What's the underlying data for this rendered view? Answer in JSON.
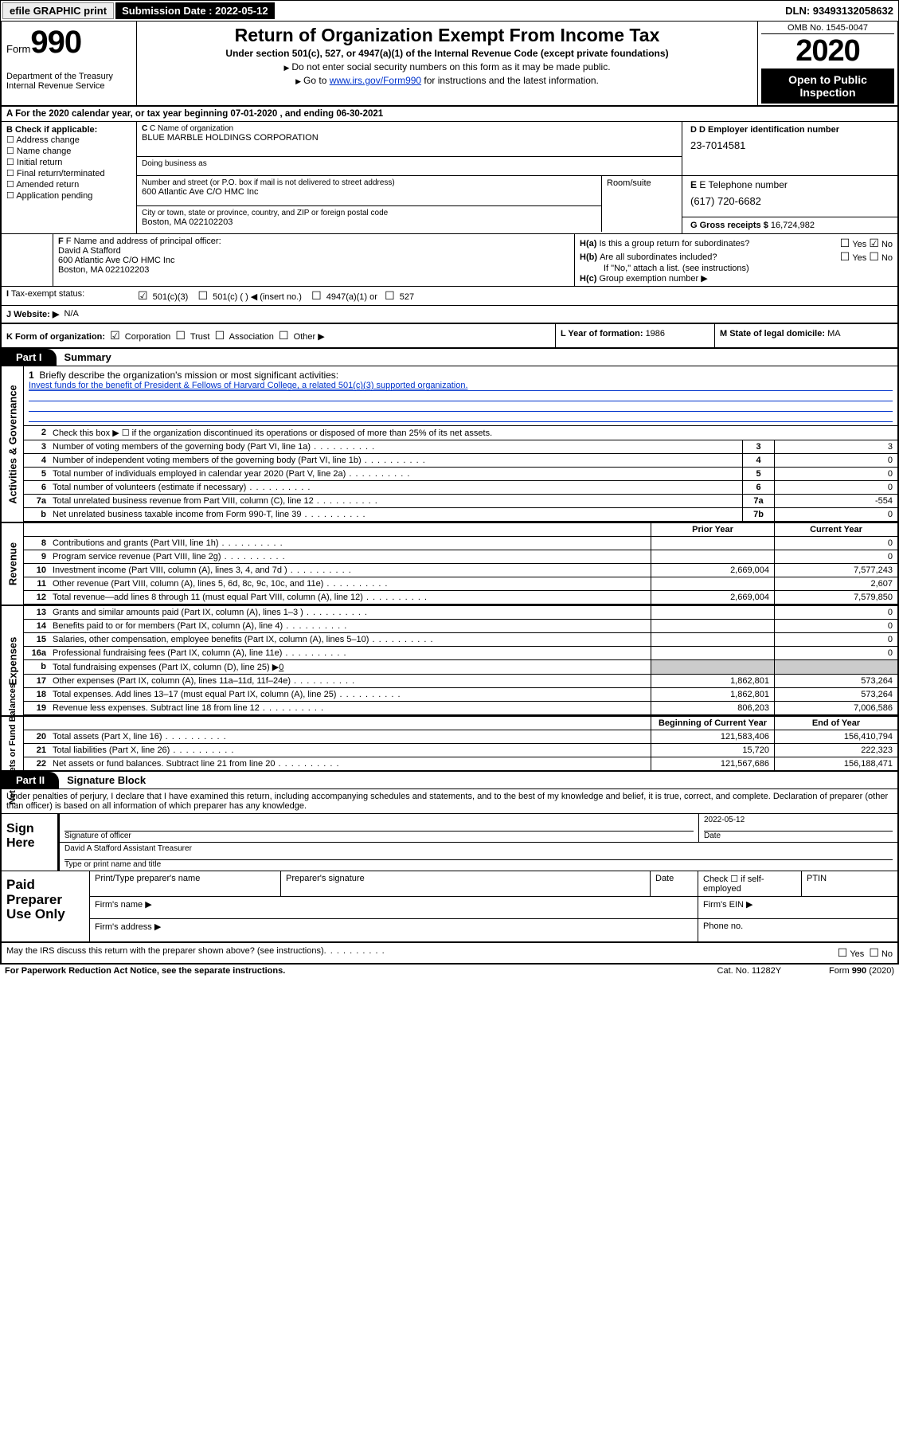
{
  "topbar": {
    "efile": "efile GRAPHIC print",
    "submission_label": "Submission Date : 2022-05-12",
    "dln": "DLN: 93493132058632"
  },
  "header": {
    "form_word": "Form",
    "form_num": "990",
    "dept": "Department of the Treasury\nInternal Revenue Service",
    "title": "Return of Organization Exempt From Income Tax",
    "subtitle": "Under section 501(c), 527, or 4947(a)(1) of the Internal Revenue Code (except private foundations)",
    "note1": "Do not enter social security numbers on this form as it may be made public.",
    "note2_pre": "Go to ",
    "note2_link": "www.irs.gov/Form990",
    "note2_post": " for instructions and the latest information.",
    "omb": "OMB No. 1545-0047",
    "year": "2020",
    "open_public": "Open to Public Inspection"
  },
  "row_a": "A For the 2020 calendar year, or tax year beginning 07-01-2020   , and ending 06-30-2021",
  "section_b": {
    "label": "B Check if applicable:",
    "items": [
      "Address change",
      "Name change",
      "Initial return",
      "Final return/terminated",
      "Amended return",
      "Application pending"
    ]
  },
  "section_c": {
    "name_lbl": "C Name of organization",
    "name_val": "BLUE MARBLE HOLDINGS CORPORATION",
    "dba_lbl": "Doing business as",
    "addr_lbl": "Number and street (or P.O. box if mail is not delivered to street address)",
    "addr_val": "600 Atlantic Ave C/O HMC Inc",
    "room_lbl": "Room/suite",
    "city_lbl": "City or town, state or province, country, and ZIP or foreign postal code",
    "city_val": "Boston, MA  022102203"
  },
  "section_d": {
    "ein_lbl": "D Employer identification number",
    "ein_val": "23-7014581",
    "tel_lbl": "E Telephone number",
    "tel_val": "(617) 720-6682",
    "gross_lbl": "G Gross receipts $ ",
    "gross_val": "16,724,982"
  },
  "section_f": {
    "lbl": "F Name and address of principal officer:",
    "name": "David A Stafford",
    "addr1": "600 Atlantic Ave C/O HMC Inc",
    "addr2": "Boston, MA  022102203"
  },
  "section_h": {
    "ha": "Is this a group return for subordinates?",
    "hb": "Are all subordinates included?",
    "hb_note": "If \"No,\" attach a list. (see instructions)",
    "hc": "Group exemption number ▶"
  },
  "tax_exempt": {
    "lbl": "Tax-exempt status:",
    "opt1": "501(c)(3)",
    "opt2": "501(c) (  ) ◀ (insert no.)",
    "opt3": "4947(a)(1) or",
    "opt4": "527"
  },
  "website": {
    "lbl": "J   Website: ▶",
    "val": "N/A"
  },
  "row_k": {
    "k_lbl": "K Form of organization:",
    "k_opts": [
      "Corporation",
      "Trust",
      "Association",
      "Other ▶"
    ],
    "l_lbl": "L Year of formation: ",
    "l_val": "1986",
    "m_lbl": "M State of legal domicile: ",
    "m_val": "MA"
  },
  "part1": {
    "tab": "Part I",
    "title": "Summary"
  },
  "mission": {
    "num": "1",
    "lbl": "Briefly describe the organization's mission or most significant activities:",
    "text": "Invest funds for the benefit of President & Fellows of Harvard College, a related 501(c)(3) supported organization."
  },
  "lines_ag": {
    "l2": "Check this box ▶ ☐  if the organization discontinued its operations or disposed of more than 25% of its net assets.",
    "rows": [
      {
        "n": "3",
        "d": "Number of voting members of the governing body (Part VI, line 1a)",
        "box": "3",
        "v": "3"
      },
      {
        "n": "4",
        "d": "Number of independent voting members of the governing body (Part VI, line 1b)",
        "box": "4",
        "v": "0"
      },
      {
        "n": "5",
        "d": "Total number of individuals employed in calendar year 2020 (Part V, line 2a)",
        "box": "5",
        "v": "0"
      },
      {
        "n": "6",
        "d": "Total number of volunteers (estimate if necessary)",
        "box": "6",
        "v": "0"
      },
      {
        "n": "7a",
        "d": "Total unrelated business revenue from Part VIII, column (C), line 12",
        "box": "7a",
        "v": "-554"
      },
      {
        "n": "b",
        "d": "Net unrelated business taxable income from Form 990-T, line 39",
        "box": "7b",
        "v": "0"
      }
    ]
  },
  "col_hdrs": {
    "prior": "Prior Year",
    "current": "Current Year",
    "begin": "Beginning of Current Year",
    "end": "End of Year"
  },
  "revenue": {
    "side": "Revenue",
    "rows": [
      {
        "n": "8",
        "d": "Contributions and grants (Part VIII, line 1h)",
        "p": "",
        "c": "0"
      },
      {
        "n": "9",
        "d": "Program service revenue (Part VIII, line 2g)",
        "p": "",
        "c": "0"
      },
      {
        "n": "10",
        "d": "Investment income (Part VIII, column (A), lines 3, 4, and 7d )",
        "p": "2,669,004",
        "c": "7,577,243"
      },
      {
        "n": "11",
        "d": "Other revenue (Part VIII, column (A), lines 5, 6d, 8c, 9c, 10c, and 11e)",
        "p": "",
        "c": "2,607"
      },
      {
        "n": "12",
        "d": "Total revenue—add lines 8 through 11 (must equal Part VIII, column (A), line 12)",
        "p": "2,669,004",
        "c": "7,579,850"
      }
    ]
  },
  "expenses": {
    "side": "Expenses",
    "rows": [
      {
        "n": "13",
        "d": "Grants and similar amounts paid (Part IX, column (A), lines 1–3 )",
        "p": "",
        "c": "0"
      },
      {
        "n": "14",
        "d": "Benefits paid to or for members (Part IX, column (A), line 4)",
        "p": "",
        "c": "0"
      },
      {
        "n": "15",
        "d": "Salaries, other compensation, employee benefits (Part IX, column (A), lines 5–10)",
        "p": "",
        "c": "0"
      },
      {
        "n": "16a",
        "d": "Professional fundraising fees (Part IX, column (A), line 11e)",
        "p": "",
        "c": "0"
      }
    ],
    "line_b": {
      "n": "b",
      "d": "Total fundraising expenses (Part IX, column (D), line 25) ▶",
      "v": "0"
    },
    "rows2": [
      {
        "n": "17",
        "d": "Other expenses (Part IX, column (A), lines 11a–11d, 11f–24e)",
        "p": "1,862,801",
        "c": "573,264"
      },
      {
        "n": "18",
        "d": "Total expenses. Add lines 13–17 (must equal Part IX, column (A), line 25)",
        "p": "1,862,801",
        "c": "573,264"
      },
      {
        "n": "19",
        "d": "Revenue less expenses. Subtract line 18 from line 12",
        "p": "806,203",
        "c": "7,006,586"
      }
    ]
  },
  "netassets": {
    "side": "Net Assets or Fund Balances",
    "rows": [
      {
        "n": "20",
        "d": "Total assets (Part X, line 16)",
        "p": "121,583,406",
        "c": "156,410,794"
      },
      {
        "n": "21",
        "d": "Total liabilities (Part X, line 26)",
        "p": "15,720",
        "c": "222,323"
      },
      {
        "n": "22",
        "d": "Net assets or fund balances. Subtract line 21 from line 20",
        "p": "121,567,686",
        "c": "156,188,471"
      }
    ]
  },
  "part2": {
    "tab": "Part II",
    "title": "Signature Block"
  },
  "perjury": "Under penalties of perjury, I declare that I have examined this return, including accompanying schedules and statements, and to the best of my knowledge and belief, it is true, correct, and complete. Declaration of preparer (other than officer) is based on all information of which preparer has any knowledge.",
  "sign": {
    "lbl": "Sign Here",
    "sig_officer": "Signature of officer",
    "date_lbl": "Date",
    "date_val": "2022-05-12",
    "typed": "David A Stafford  Assistant Treasurer",
    "typed_lbl": "Type or print name and title"
  },
  "paid": {
    "lbl": "Paid Preparer Use Only",
    "h1": "Print/Type preparer's name",
    "h2": "Preparer's signature",
    "h3": "Date",
    "h4": "Check ☐ if self-employed",
    "h5": "PTIN",
    "firm_name": "Firm's name   ▶",
    "firm_ein": "Firm's EIN ▶",
    "firm_addr": "Firm's address ▶",
    "phone": "Phone no."
  },
  "irs_discuss": "May the IRS discuss this return with the preparer shown above? (see instructions)",
  "footer": {
    "paperwork": "For Paperwork Reduction Act Notice, see the separate instructions.",
    "cat": "Cat. No. 11282Y",
    "form": "Form 990 (2020)"
  }
}
